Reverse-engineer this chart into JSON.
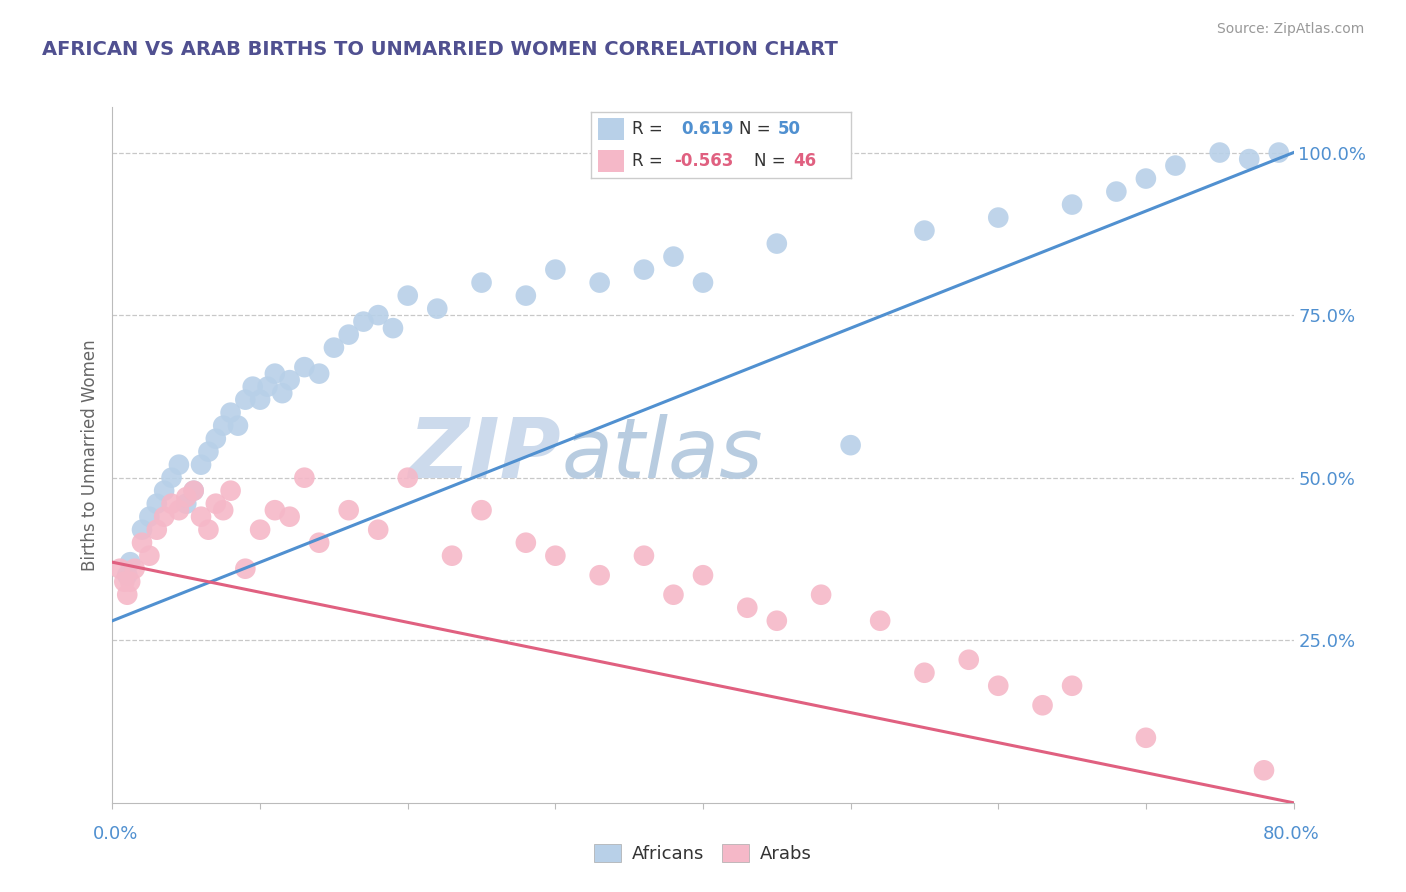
{
  "title": "AFRICAN VS ARAB BIRTHS TO UNMARRIED WOMEN CORRELATION CHART",
  "source": "Source: ZipAtlas.com",
  "ylabel": "Births to Unmarried Women",
  "ytick_vals": [
    25.0,
    50.0,
    75.0,
    100.0
  ],
  "ytick_labels": [
    "25.0%",
    "50.0%",
    "75.0%",
    "100.0%"
  ],
  "african_color": "#b8d0e8",
  "arab_color": "#f5b8c8",
  "african_line_color": "#5090d0",
  "arab_line_color": "#e06080",
  "background_color": "#ffffff",
  "grid_color": "#c8c8c8",
  "title_color": "#505090",
  "axis_label_color": "#5090d0",
  "watermark_zip_color": "#c8d8ec",
  "watermark_atlas_color": "#b8c8e0",
  "african_x": [
    1.0,
    1.2,
    2.0,
    2.5,
    3.0,
    3.5,
    4.0,
    4.5,
    5.0,
    5.5,
    6.0,
    6.5,
    7.0,
    7.5,
    8.0,
    8.5,
    9.0,
    9.5,
    10.0,
    10.5,
    11.0,
    11.5,
    12.0,
    13.0,
    14.0,
    15.0,
    16.0,
    17.0,
    18.0,
    19.0,
    20.0,
    22.0,
    25.0,
    28.0,
    30.0,
    33.0,
    36.0,
    38.0,
    40.0,
    45.0,
    50.0,
    55.0,
    60.0,
    65.0,
    68.0,
    70.0,
    72.0,
    75.0,
    77.0,
    79.0
  ],
  "african_y": [
    35.0,
    37.0,
    42.0,
    44.0,
    46.0,
    48.0,
    50.0,
    52.0,
    46.0,
    48.0,
    52.0,
    54.0,
    56.0,
    58.0,
    60.0,
    58.0,
    62.0,
    64.0,
    62.0,
    64.0,
    66.0,
    63.0,
    65.0,
    67.0,
    66.0,
    70.0,
    72.0,
    74.0,
    75.0,
    73.0,
    78.0,
    76.0,
    80.0,
    78.0,
    82.0,
    80.0,
    82.0,
    84.0,
    80.0,
    86.0,
    55.0,
    88.0,
    90.0,
    92.0,
    94.0,
    96.0,
    98.0,
    100.0,
    99.0,
    100.0
  ],
  "arab_x": [
    0.5,
    0.8,
    1.0,
    1.2,
    1.5,
    2.0,
    2.5,
    3.0,
    3.5,
    4.0,
    4.5,
    5.0,
    5.5,
    6.0,
    6.5,
    7.0,
    7.5,
    8.0,
    9.0,
    10.0,
    11.0,
    12.0,
    13.0,
    14.0,
    16.0,
    18.0,
    20.0,
    23.0,
    25.0,
    28.0,
    30.0,
    33.0,
    36.0,
    38.0,
    40.0,
    43.0,
    45.0,
    48.0,
    52.0,
    55.0,
    58.0,
    60.0,
    63.0,
    65.0,
    70.0,
    78.0
  ],
  "arab_y": [
    36.0,
    34.0,
    32.0,
    34.0,
    36.0,
    40.0,
    38.0,
    42.0,
    44.0,
    46.0,
    45.0,
    47.0,
    48.0,
    44.0,
    42.0,
    46.0,
    45.0,
    48.0,
    36.0,
    42.0,
    45.0,
    44.0,
    50.0,
    40.0,
    45.0,
    42.0,
    50.0,
    38.0,
    45.0,
    40.0,
    38.0,
    35.0,
    38.0,
    32.0,
    35.0,
    30.0,
    28.0,
    32.0,
    28.0,
    20.0,
    22.0,
    18.0,
    15.0,
    18.0,
    10.0,
    5.0
  ],
  "af_line_x0": 0.0,
  "af_line_x1": 80.0,
  "af_line_y0": 28.0,
  "af_line_y1": 100.0,
  "ar_line_x0": 0.0,
  "ar_line_x1": 80.0,
  "ar_line_y0": 37.0,
  "ar_line_y1": 0.0,
  "xmin": 0.0,
  "xmax": 80.0,
  "ymin": 0.0,
  "ymax": 107.0
}
